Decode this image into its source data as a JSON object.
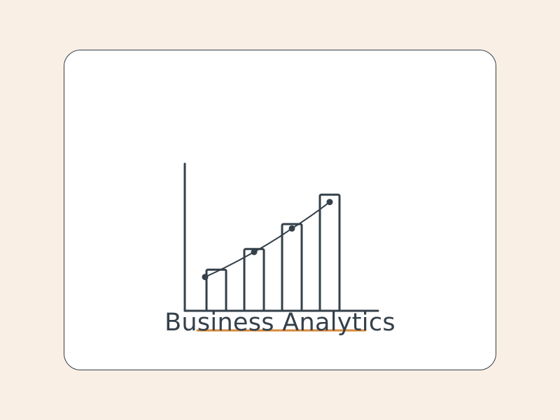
{
  "title": "Business Analytics",
  "colors": {
    "background": "#f9efe5",
    "card": "#ffffff",
    "ink": "#34404a",
    "accent": "#d98a3d"
  },
  "chart_data": {
    "type": "bar",
    "bar_heights_relative": [
      0.28,
      0.42,
      0.59,
      0.79
    ],
    "trend_line_relative": [
      0.23,
      0.4,
      0.56,
      0.74
    ],
    "trend_markers": true
  }
}
